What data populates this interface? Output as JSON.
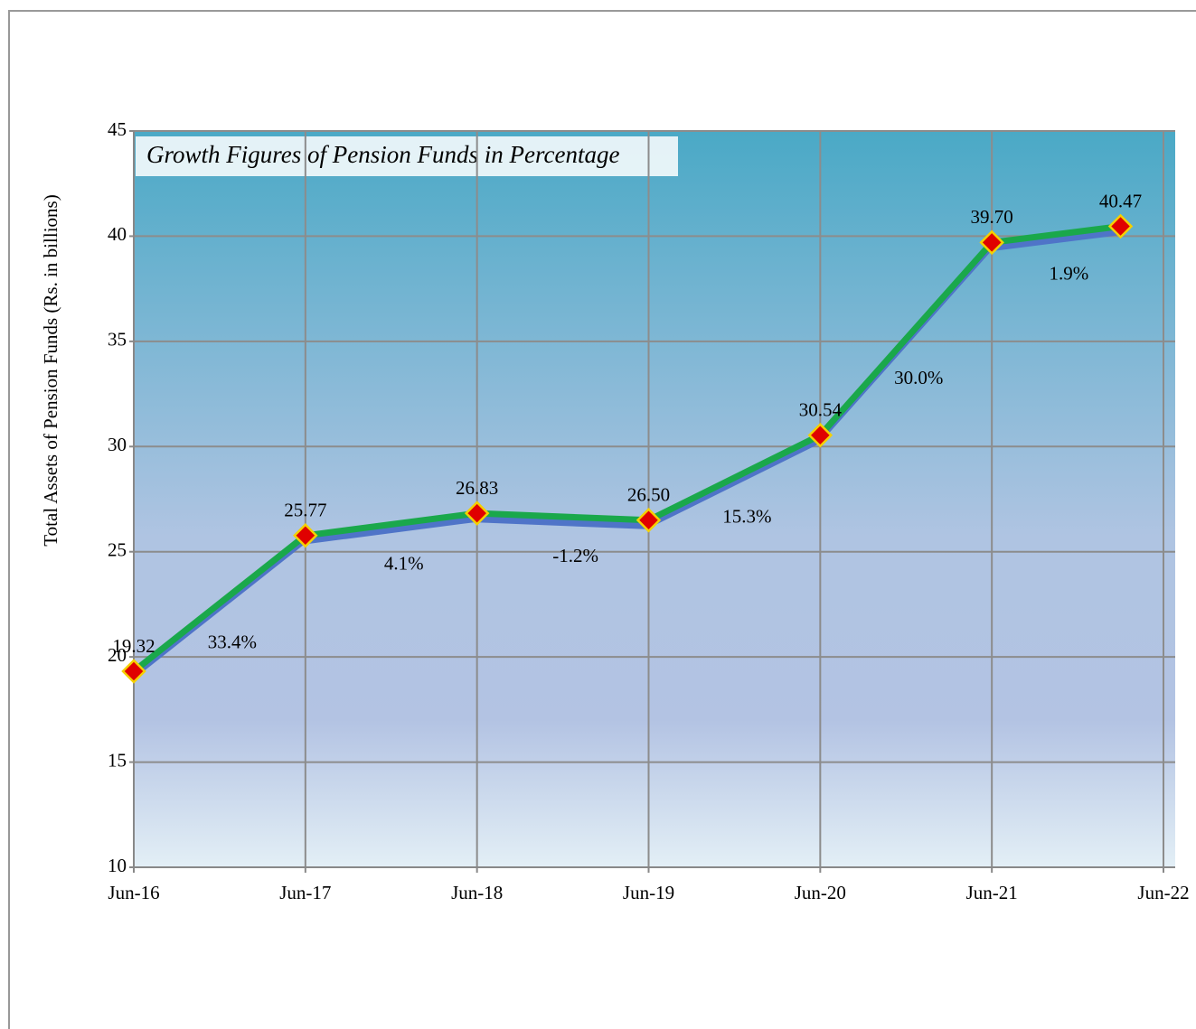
{
  "chart_data": {
    "type": "line",
    "title": "Growth Figures of Pension Funds in Percentage",
    "y_label": "Total Assets  of Pension Funds (Rs. in billions)",
    "x": [
      "2016-06",
      "2017-06",
      "2018-06",
      "2019-06",
      "2020-06",
      "2021-06",
      "2022-03"
    ],
    "series": [
      {
        "name": "Total Assets",
        "color": "#1aa84b",
        "values": [
          19.32,
          25.77,
          26.83,
          26.5,
          30.54,
          39.7,
          40.47
        ],
        "value_labels": [
          "19.32",
          "25.77",
          "26.83",
          "26.50",
          "30.54",
          "39.70",
          "40.47"
        ]
      }
    ],
    "growth": {
      "values": [
        33.4,
        4.1,
        -1.2,
        15.3,
        30.0,
        1.9
      ],
      "value_labels": [
        "33.4%",
        "4.1%",
        "-1.2%",
        "15.3%",
        "30.0%",
        "1.9%"
      ]
    },
    "marker_color": "#e00000",
    "xlim": [
      "2016-06",
      "2022-06"
    ],
    "xticks": [
      {
        "value": "2016-06",
        "label": "Jun-16"
      },
      {
        "value": "2017-06",
        "label": "Jun-17"
      },
      {
        "value": "2018-06",
        "label": "Jun-18"
      },
      {
        "value": "2019-06",
        "label": "Jun-19"
      },
      {
        "value": "2020-06",
        "label": "Jun-20"
      },
      {
        "value": "2021-06",
        "label": "Jun-21"
      },
      {
        "value": "2022-06",
        "label": "Jun-22"
      }
    ],
    "ylim": [
      10,
      45
    ],
    "yticks": [
      10,
      15,
      20,
      25,
      30,
      35,
      40,
      45
    ],
    "grid": true
  }
}
